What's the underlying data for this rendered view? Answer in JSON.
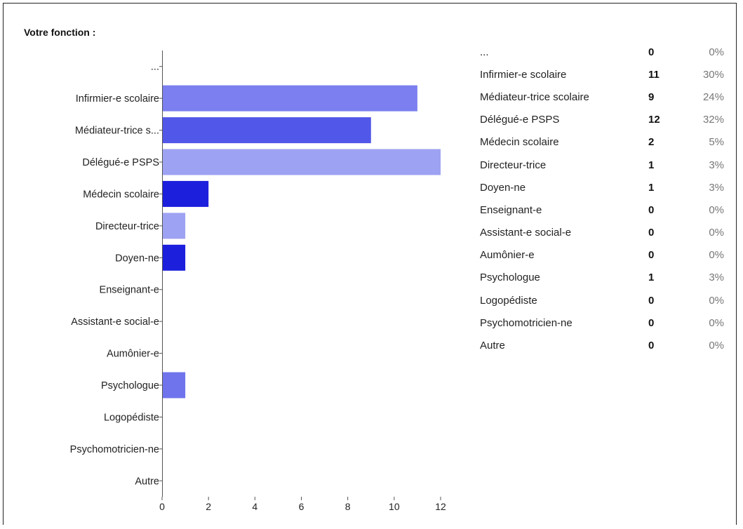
{
  "title": "Votre fonction :",
  "chart_data": {
    "type": "bar",
    "orientation": "horizontal",
    "categories": [
      "...",
      "Infirmier-e scolaire",
      "Médiateur-trice s...",
      "Délégué-e PSPS",
      "Médecin scolaire",
      "Directeur-trice",
      "Doyen-ne",
      "Enseignant-e",
      "Assistant-e social-e",
      "Aumônier-e",
      "Psychologue",
      "Logopédiste",
      "Psychomotricien-ne",
      "Autre"
    ],
    "values": [
      0,
      11,
      9,
      12,
      2,
      1,
      1,
      0,
      0,
      0,
      1,
      0,
      0,
      0
    ],
    "bar_colors": [
      "#7b7ff0",
      "#7b7ff0",
      "#5157e8",
      "#9ea2f2",
      "#1c1fdc",
      "#9ea2f2",
      "#1c1fdc",
      "#7b7ff0",
      "#7b7ff0",
      "#7b7ff0",
      "#6f74ec",
      "#7b7ff0",
      "#7b7ff0",
      "#7b7ff0"
    ],
    "xlim": [
      0,
      12
    ],
    "xticks": [
      0,
      2,
      4,
      6,
      8,
      10,
      12
    ],
    "grid": false
  },
  "legend": [
    {
      "name": "...",
      "count": "0",
      "pct": "0%"
    },
    {
      "name": "Infirmier-e scolaire",
      "count": "11",
      "pct": "30%"
    },
    {
      "name": "Médiateur-trice scolaire",
      "count": "9",
      "pct": "24%"
    },
    {
      "name": "Délégué-e PSPS",
      "count": "12",
      "pct": "32%"
    },
    {
      "name": "Médecin scolaire",
      "count": "2",
      "pct": "5%"
    },
    {
      "name": "Directeur-trice",
      "count": "1",
      "pct": "3%"
    },
    {
      "name": "Doyen-ne",
      "count": "1",
      "pct": "3%"
    },
    {
      "name": "Enseignant-e",
      "count": "0",
      "pct": "0%"
    },
    {
      "name": "Assistant-e social-e",
      "count": "0",
      "pct": "0%"
    },
    {
      "name": "Aumônier-e",
      "count": "0",
      "pct": "0%"
    },
    {
      "name": "Psychologue",
      "count": "1",
      "pct": "3%"
    },
    {
      "name": "Logopédiste",
      "count": "0",
      "pct": "0%"
    },
    {
      "name": "Psychomotricien-ne",
      "count": "0",
      "pct": "0%"
    },
    {
      "name": "Autre",
      "count": "0",
      "pct": "0%"
    }
  ]
}
